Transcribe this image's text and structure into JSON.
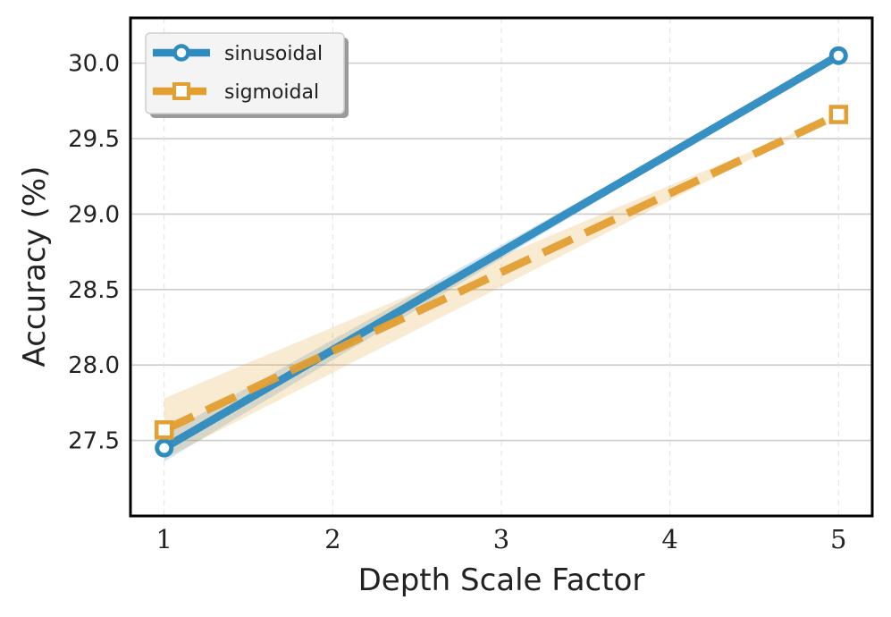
{
  "chart_data": {
    "type": "line",
    "title": "",
    "xlabel": "Depth Scale Factor",
    "ylabel": "Accuracy (%)",
    "x": [
      1,
      5
    ],
    "xticks": [
      "1",
      "2",
      "3",
      "4",
      "5"
    ],
    "xtick_values": [
      1,
      2,
      3,
      4,
      5
    ],
    "yticks": [
      "27.5",
      "28.0",
      "28.5",
      "29.0",
      "29.5",
      "30.0"
    ],
    "ytick_values": [
      27.5,
      28.0,
      28.5,
      29.0,
      29.5,
      30.0
    ],
    "xlim": [
      0.8,
      5.2
    ],
    "ylim": [
      27.0,
      30.3
    ],
    "grid": true,
    "legend_position": "top-left",
    "series": [
      {
        "name": "sinusoidal",
        "x": [
          1,
          5
        ],
        "values": [
          27.45,
          30.05
        ],
        "band_lower": [
          27.36,
          30.05
        ],
        "band_upper": [
          27.54,
          30.05
        ],
        "color": "#2e8bc0",
        "style": "solid",
        "marker": "circle"
      },
      {
        "name": "sigmoidal",
        "x": [
          1,
          5
        ],
        "values": [
          27.57,
          29.66
        ],
        "band_lower": [
          27.38,
          29.66
        ],
        "band_upper": [
          27.78,
          29.66
        ],
        "color": "#e39f31",
        "style": "dashed",
        "marker": "square"
      }
    ]
  }
}
